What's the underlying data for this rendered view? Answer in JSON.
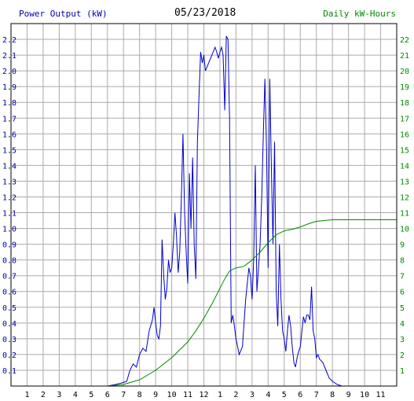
{
  "header": {
    "left_label": "Power Output (kW)",
    "date": "05/23/2018",
    "right_label": "Daily kW-Hours"
  },
  "colors": {
    "power": "#0000cc",
    "energy": "#008800",
    "left_axis_text": "#0000aa",
    "right_axis_text": "#008800",
    "grid": "#aaaaaa",
    "frame": "#000000"
  },
  "chart_data": {
    "type": "line",
    "title": "05/23/2018",
    "x_ticks": [
      "1",
      "2",
      "3",
      "4",
      "5",
      "6",
      "7",
      "8",
      "9",
      "10",
      "11",
      "12",
      "1",
      "2",
      "3",
      "4",
      "5",
      "6",
      "7",
      "8",
      "9",
      "10",
      "11"
    ],
    "x_range_hours": [
      0,
      24
    ],
    "grid": true,
    "y_left": {
      "label": "Power Output (kW)",
      "range": [
        0,
        2.3
      ],
      "ticks": [
        "0.1",
        "0.2",
        "0.3",
        "0.4",
        "0.5",
        "0.6",
        "0.7",
        "0.8",
        "0.9",
        "1.0",
        "1.1",
        "1.2",
        "1.3",
        "1.4",
        "1.5",
        "1.6",
        "1.7",
        "1.8",
        "1.9",
        "2.0",
        "2.1",
        "2.2"
      ]
    },
    "y_right": {
      "label": "Daily kW-Hours",
      "range": [
        0,
        23
      ],
      "ticks": [
        "1",
        "2",
        "3",
        "4",
        "5",
        "6",
        "7",
        "8",
        "9",
        "10",
        "11",
        "12",
        "13",
        "14",
        "15",
        "16",
        "17",
        "18",
        "19",
        "20",
        "21",
        "22"
      ]
    },
    "series": [
      {
        "name": "Power Output (kW)",
        "axis": "left",
        "points": [
          [
            6.0,
            0
          ],
          [
            6.5,
            0.01
          ],
          [
            6.9,
            0.02
          ],
          [
            7.2,
            0.03
          ],
          [
            7.4,
            0.1
          ],
          [
            7.6,
            0.14
          ],
          [
            7.8,
            0.12
          ],
          [
            8.0,
            0.2
          ],
          [
            8.2,
            0.24
          ],
          [
            8.4,
            0.22
          ],
          [
            8.6,
            0.35
          ],
          [
            8.8,
            0.42
          ],
          [
            8.9,
            0.5
          ],
          [
            9.0,
            0.4
          ],
          [
            9.1,
            0.32
          ],
          [
            9.2,
            0.3
          ],
          [
            9.3,
            0.38
          ],
          [
            9.4,
            0.93
          ],
          [
            9.5,
            0.7
          ],
          [
            9.6,
            0.55
          ],
          [
            9.7,
            0.62
          ],
          [
            9.8,
            0.8
          ],
          [
            9.9,
            0.72
          ],
          [
            10.0,
            0.75
          ],
          [
            10.1,
            0.9
          ],
          [
            10.2,
            1.1
          ],
          [
            10.3,
            0.95
          ],
          [
            10.4,
            0.72
          ],
          [
            10.5,
            0.85
          ],
          [
            10.6,
            1.2
          ],
          [
            10.7,
            1.6
          ],
          [
            10.8,
            1.1
          ],
          [
            10.9,
            0.85
          ],
          [
            11.0,
            0.65
          ],
          [
            11.1,
            1.35
          ],
          [
            11.2,
            1.0
          ],
          [
            11.3,
            1.45
          ],
          [
            11.4,
            0.9
          ],
          [
            11.5,
            0.68
          ],
          [
            11.6,
            1.55
          ],
          [
            11.7,
            1.85
          ],
          [
            11.8,
            2.12
          ],
          [
            11.9,
            2.05
          ],
          [
            12.0,
            2.1
          ],
          [
            12.1,
            2.0
          ],
          [
            12.3,
            2.05
          ],
          [
            12.5,
            2.1
          ],
          [
            12.7,
            2.15
          ],
          [
            12.8,
            2.12
          ],
          [
            12.9,
            2.08
          ],
          [
            13.0,
            2.12
          ],
          [
            13.1,
            2.15
          ],
          [
            13.2,
            2.1
          ],
          [
            13.3,
            1.75
          ],
          [
            13.4,
            2.22
          ],
          [
            13.5,
            2.2
          ],
          [
            13.6,
            1.7
          ],
          [
            13.7,
            0.4
          ],
          [
            13.8,
            0.45
          ],
          [
            13.9,
            0.38
          ],
          [
            14.0,
            0.3
          ],
          [
            14.2,
            0.2
          ],
          [
            14.4,
            0.25
          ],
          [
            14.6,
            0.55
          ],
          [
            14.8,
            0.75
          ],
          [
            14.9,
            0.7
          ],
          [
            15.0,
            0.55
          ],
          [
            15.1,
            0.8
          ],
          [
            15.2,
            1.4
          ],
          [
            15.3,
            0.6
          ],
          [
            15.4,
            0.75
          ],
          [
            15.5,
            0.9
          ],
          [
            15.6,
            1.2
          ],
          [
            15.7,
            1.6
          ],
          [
            15.8,
            1.95
          ],
          [
            15.9,
            1.5
          ],
          [
            16.0,
            0.75
          ],
          [
            16.1,
            1.95
          ],
          [
            16.2,
            1.4
          ],
          [
            16.3,
            0.9
          ],
          [
            16.4,
            1.55
          ],
          [
            16.5,
            0.6
          ],
          [
            16.6,
            0.38
          ],
          [
            16.7,
            0.9
          ],
          [
            16.8,
            0.55
          ],
          [
            16.9,
            0.35
          ],
          [
            17.0,
            0.3
          ],
          [
            17.1,
            0.22
          ],
          [
            17.2,
            0.35
          ],
          [
            17.3,
            0.45
          ],
          [
            17.4,
            0.38
          ],
          [
            17.5,
            0.25
          ],
          [
            17.6,
            0.15
          ],
          [
            17.7,
            0.12
          ],
          [
            17.8,
            0.18
          ],
          [
            17.9,
            0.22
          ],
          [
            18.0,
            0.25
          ],
          [
            18.1,
            0.35
          ],
          [
            18.2,
            0.44
          ],
          [
            18.3,
            0.4
          ],
          [
            18.4,
            0.45
          ],
          [
            18.5,
            0.45
          ],
          [
            18.6,
            0.42
          ],
          [
            18.7,
            0.63
          ],
          [
            18.8,
            0.35
          ],
          [
            18.9,
            0.3
          ],
          [
            19.0,
            0.18
          ],
          [
            19.1,
            0.2
          ],
          [
            19.2,
            0.17
          ],
          [
            19.4,
            0.15
          ],
          [
            19.6,
            0.1
          ],
          [
            19.8,
            0.05
          ],
          [
            20.0,
            0.03
          ],
          [
            20.3,
            0.01
          ],
          [
            20.6,
            0
          ]
        ]
      },
      {
        "name": "Daily kW-Hours",
        "axis": "right",
        "points": [
          [
            6.0,
            0
          ],
          [
            6.5,
            0.05
          ],
          [
            7.0,
            0.1
          ],
          [
            7.5,
            0.25
          ],
          [
            8.0,
            0.4
          ],
          [
            8.5,
            0.7
          ],
          [
            9.0,
            1.0
          ],
          [
            9.5,
            1.4
          ],
          [
            10.0,
            1.8
          ],
          [
            10.5,
            2.3
          ],
          [
            11.0,
            2.8
          ],
          [
            11.5,
            3.5
          ],
          [
            12.0,
            4.3
          ],
          [
            12.5,
            5.2
          ],
          [
            13.0,
            6.2
          ],
          [
            13.3,
            6.8
          ],
          [
            13.6,
            7.3
          ],
          [
            14.0,
            7.5
          ],
          [
            14.5,
            7.6
          ],
          [
            15.0,
            8.0
          ],
          [
            15.5,
            8.5
          ],
          [
            16.0,
            9.1
          ],
          [
            16.5,
            9.6
          ],
          [
            17.0,
            9.85
          ],
          [
            17.5,
            9.95
          ],
          [
            18.0,
            10.1
          ],
          [
            18.5,
            10.3
          ],
          [
            19.0,
            10.45
          ],
          [
            19.5,
            10.5
          ],
          [
            20.0,
            10.55
          ],
          [
            20.5,
            10.55
          ],
          [
            21.0,
            10.55
          ],
          [
            22.0,
            10.55
          ],
          [
            23.0,
            10.55
          ],
          [
            24.0,
            10.55
          ]
        ]
      }
    ]
  }
}
